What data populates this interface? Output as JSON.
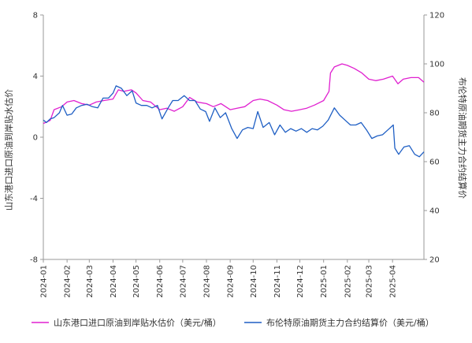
{
  "chart_data": {
    "type": "line",
    "title": "",
    "y_left_label": "山东港口进口原油到岸贴水估价",
    "y_right_label": "布伦特原油期货主力合约结算价",
    "y_left_lim": [
      -8,
      8
    ],
    "y_left_ticks": [
      "-8",
      "-4",
      "0",
      "4",
      "8"
    ],
    "y_right_lim": [
      20,
      120
    ],
    "y_right_ticks": [
      "20",
      "40",
      "60",
      "80",
      "100",
      "120"
    ],
    "x_ticks": [
      "2024-01",
      "2024-02",
      "2024-03",
      "2024-04",
      "2024-05",
      "2024-06",
      "2024-07",
      "2024-08",
      "2024-09",
      "2024-10",
      "2024-11",
      "2024-12",
      "2025-01",
      "2025-02",
      "2025-03",
      "2025-04"
    ],
    "x_start": "2024-01-01",
    "x_end": "2025-05-12",
    "grid": false,
    "legend_position": "bottom",
    "series": [
      {
        "name": "山东港口进口原油到岸贴水估价（美元/桶）",
        "axis": "left",
        "color": "#e020d0",
        "points": [
          [
            "2024-01-01",
            0.9
          ],
          [
            "2024-01-10",
            1.1
          ],
          [
            "2024-01-15",
            1.8
          ],
          [
            "2024-01-25",
            2.0
          ],
          [
            "2024-02-01",
            2.3
          ],
          [
            "2024-02-10",
            2.4
          ],
          [
            "2024-02-20",
            2.2
          ],
          [
            "2024-03-01",
            2.1
          ],
          [
            "2024-03-10",
            2.3
          ],
          [
            "2024-03-20",
            2.4
          ],
          [
            "2024-04-01",
            2.5
          ],
          [
            "2024-04-08",
            3.1
          ],
          [
            "2024-04-15",
            3.0
          ],
          [
            "2024-04-25",
            3.1
          ],
          [
            "2024-05-01",
            2.9
          ],
          [
            "2024-05-10",
            2.4
          ],
          [
            "2024-05-20",
            2.3
          ],
          [
            "2024-06-01",
            1.8
          ],
          [
            "2024-06-10",
            1.9
          ],
          [
            "2024-06-20",
            1.7
          ],
          [
            "2024-07-01",
            2.0
          ],
          [
            "2024-07-10",
            2.6
          ],
          [
            "2024-07-20",
            2.3
          ],
          [
            "2024-08-01",
            2.2
          ],
          [
            "2024-08-10",
            2.0
          ],
          [
            "2024-08-20",
            2.2
          ],
          [
            "2024-09-01",
            1.8
          ],
          [
            "2024-09-10",
            1.9
          ],
          [
            "2024-09-20",
            2.0
          ],
          [
            "2024-10-01",
            2.4
          ],
          [
            "2024-10-10",
            2.5
          ],
          [
            "2024-10-20",
            2.4
          ],
          [
            "2024-11-01",
            2.1
          ],
          [
            "2024-11-10",
            1.8
          ],
          [
            "2024-11-20",
            1.7
          ],
          [
            "2024-12-01",
            1.8
          ],
          [
            "2024-12-10",
            1.9
          ],
          [
            "2024-12-20",
            2.1
          ],
          [
            "2025-01-01",
            2.4
          ],
          [
            "2025-01-08",
            3.0
          ],
          [
            "2025-01-10",
            4.2
          ],
          [
            "2025-01-15",
            4.6
          ],
          [
            "2025-01-25",
            4.8
          ],
          [
            "2025-02-01",
            4.7
          ],
          [
            "2025-02-10",
            4.5
          ],
          [
            "2025-02-20",
            4.2
          ],
          [
            "2025-03-01",
            3.8
          ],
          [
            "2025-03-10",
            3.7
          ],
          [
            "2025-03-20",
            3.8
          ],
          [
            "2025-04-01",
            4.0
          ],
          [
            "2025-04-08",
            3.5
          ],
          [
            "2025-04-15",
            3.8
          ],
          [
            "2025-04-25",
            3.9
          ],
          [
            "2025-05-05",
            3.9
          ],
          [
            "2025-05-12",
            3.6
          ]
        ]
      },
      {
        "name": "布伦特原油期货主力合约结算价（美元/桶）",
        "axis": "right",
        "color": "#1f5fc4",
        "points": [
          [
            "2024-01-01",
            77
          ],
          [
            "2024-01-05",
            76
          ],
          [
            "2024-01-10",
            77.5
          ],
          [
            "2024-01-15",
            78
          ],
          [
            "2024-01-22",
            80
          ],
          [
            "2024-01-26",
            83
          ],
          [
            "2024-02-01",
            79
          ],
          [
            "2024-02-07",
            79.5
          ],
          [
            "2024-02-13",
            82
          ],
          [
            "2024-02-20",
            83
          ],
          [
            "2024-02-27",
            83.5
          ],
          [
            "2024-03-05",
            82.5
          ],
          [
            "2024-03-12",
            82
          ],
          [
            "2024-03-19",
            86
          ],
          [
            "2024-03-26",
            86
          ],
          [
            "2024-04-01",
            88
          ],
          [
            "2024-04-05",
            91
          ],
          [
            "2024-04-12",
            90
          ],
          [
            "2024-04-19",
            87
          ],
          [
            "2024-04-26",
            89
          ],
          [
            "2024-05-01",
            84
          ],
          [
            "2024-05-08",
            83
          ],
          [
            "2024-05-15",
            83
          ],
          [
            "2024-05-22",
            82
          ],
          [
            "2024-05-29",
            83
          ],
          [
            "2024-06-04",
            77.5
          ],
          [
            "2024-06-12",
            82
          ],
          [
            "2024-06-18",
            85
          ],
          [
            "2024-06-25",
            85
          ],
          [
            "2024-07-03",
            87
          ],
          [
            "2024-07-10",
            85
          ],
          [
            "2024-07-17",
            85
          ],
          [
            "2024-07-24",
            81.5
          ],
          [
            "2024-07-31",
            80.5
          ],
          [
            "2024-08-05",
            76.5
          ],
          [
            "2024-08-12",
            82
          ],
          [
            "2024-08-19",
            78
          ],
          [
            "2024-08-26",
            80
          ],
          [
            "2024-09-03",
            73.5
          ],
          [
            "2024-09-10",
            69.5
          ],
          [
            "2024-09-17",
            73
          ],
          [
            "2024-09-24",
            74
          ],
          [
            "2024-10-01",
            73.5
          ],
          [
            "2024-10-07",
            80.5
          ],
          [
            "2024-10-14",
            74
          ],
          [
            "2024-10-22",
            76
          ],
          [
            "2024-10-29",
            71
          ],
          [
            "2024-11-05",
            75
          ],
          [
            "2024-11-12",
            72
          ],
          [
            "2024-11-19",
            73.5
          ],
          [
            "2024-11-26",
            72.5
          ],
          [
            "2024-12-03",
            73.5
          ],
          [
            "2024-12-10",
            72
          ],
          [
            "2024-12-17",
            73.5
          ],
          [
            "2024-12-24",
            73
          ],
          [
            "2024-12-31",
            74.5
          ],
          [
            "2025-01-07",
            77
          ],
          [
            "2025-01-15",
            82
          ],
          [
            "2025-01-22",
            79
          ],
          [
            "2025-01-29",
            77
          ],
          [
            "2025-02-05",
            75
          ],
          [
            "2025-02-12",
            75
          ],
          [
            "2025-02-19",
            76
          ],
          [
            "2025-02-26",
            73
          ],
          [
            "2025-03-05",
            69.5
          ],
          [
            "2025-03-12",
            70.5
          ],
          [
            "2025-03-19",
            71
          ],
          [
            "2025-03-26",
            73
          ],
          [
            "2025-04-02",
            75
          ],
          [
            "2025-04-04",
            65.5
          ],
          [
            "2025-04-09",
            63
          ],
          [
            "2025-04-16",
            66
          ],
          [
            "2025-04-23",
            66.5
          ],
          [
            "2025-04-30",
            63
          ],
          [
            "2025-05-06",
            62
          ],
          [
            "2025-05-12",
            64
          ]
        ]
      }
    ]
  }
}
